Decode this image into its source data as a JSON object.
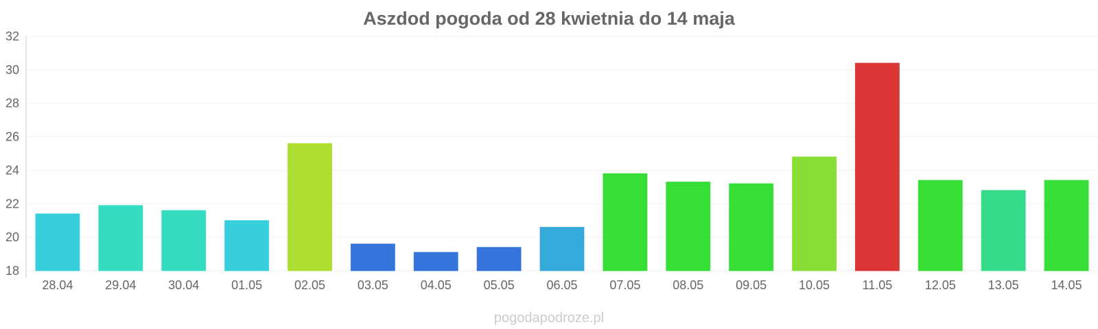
{
  "chart_data": {
    "type": "bar",
    "title": "Aszdod pogoda od 28 kwietnia do 14 maja",
    "xlabel": "",
    "ylabel": "",
    "ylim": [
      18,
      32
    ],
    "yticks": [
      "18",
      "20",
      "22",
      "24",
      "26",
      "28",
      "30",
      "32"
    ],
    "grid": true,
    "categories": [
      "28.04",
      "29.04",
      "30.04",
      "01.05",
      "02.05",
      "03.05",
      "04.05",
      "05.05",
      "06.05",
      "07.05",
      "08.05",
      "09.05",
      "10.05",
      "11.05",
      "12.05",
      "13.05",
      "14.05"
    ],
    "values": [
      21.4,
      21.9,
      21.6,
      21.0,
      25.6,
      19.6,
      19.1,
      19.4,
      20.6,
      23.8,
      23.3,
      23.2,
      24.8,
      30.4,
      23.4,
      22.8,
      23.4
    ],
    "colors": [
      "#36CFDB",
      "#36DCBF",
      "#36DCBF",
      "#36CFDB",
      "#ADDE30",
      "#3575DB",
      "#3575DB",
      "#3575DB",
      "#36A9DB",
      "#36DE36",
      "#36DE36",
      "#36DE36",
      "#89DE36",
      "#DB3535",
      "#36DE36",
      "#36DB89",
      "#36DE36"
    ]
  },
  "watermark": "pogodapodroze.pl"
}
